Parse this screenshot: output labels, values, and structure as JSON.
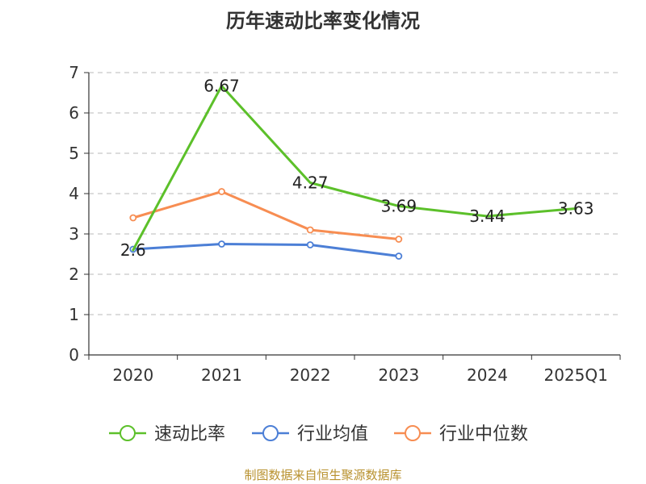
{
  "chart_data": {
    "type": "line",
    "title": "历年速动比率变化情况",
    "categories": [
      "2020",
      "2021",
      "2022",
      "2023",
      "2024",
      "2025Q1"
    ],
    "ylim": [
      0,
      7
    ],
    "yticks": [
      0,
      1,
      2,
      3,
      4,
      5,
      6,
      7
    ],
    "grid": true,
    "legend_position": "bottom",
    "series": [
      {
        "name": "速动比率",
        "color": "#5cc02a",
        "values": [
          2.6,
          6.67,
          4.27,
          3.69,
          3.44,
          3.63
        ],
        "labels": [
          "2.6",
          "6.67",
          "4.27",
          "3.69",
          "3.44",
          "3.63"
        ],
        "show_markers": false
      },
      {
        "name": "行业均值",
        "color": "#4c7fd6",
        "values": [
          2.62,
          2.75,
          2.73,
          2.45,
          null,
          null
        ],
        "labels": [],
        "show_markers": true
      },
      {
        "name": "行业中位数",
        "color": "#f78d52",
        "values": [
          3.4,
          4.05,
          3.1,
          2.87,
          null,
          null
        ],
        "labels": [],
        "show_markers": true
      }
    ]
  },
  "source": "制图数据来自恒生聚源数据库"
}
